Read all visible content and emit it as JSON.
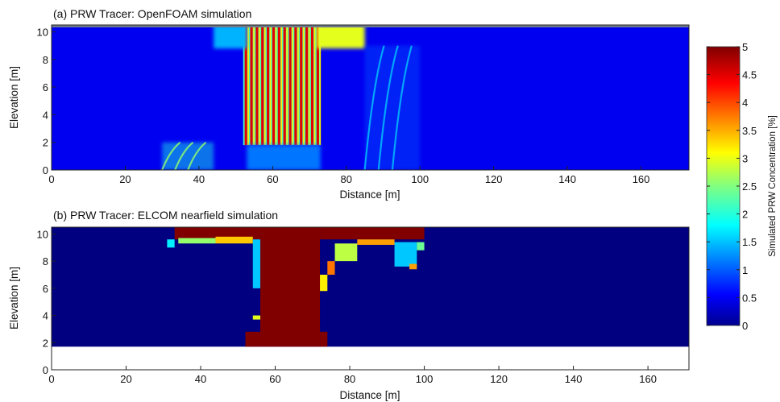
{
  "chart_data": [
    {
      "type": "heatmap",
      "title": "(a) PRW Tracer: OpenFOAM simulation",
      "xlabel": "Distance [m]",
      "ylabel": "Elevation [m]",
      "xlim": [
        0,
        173
      ],
      "ylim": [
        0,
        10.5
      ],
      "xticks": [
        0,
        20,
        40,
        60,
        80,
        100,
        120,
        140,
        160
      ],
      "yticks": [
        0,
        2,
        4,
        6,
        8,
        10
      ],
      "background_value": 0.55,
      "surface_band_elevation": [
        10.4,
        10.5
      ],
      "regions": [
        {
          "x": [
            52,
            73
          ],
          "y": [
            1.8,
            10.5
          ],
          "value": 4.5,
          "pattern": "vertical-plume-streaks"
        },
        {
          "x": [
            72,
            85
          ],
          "y": [
            8.8,
            10.5
          ],
          "value": 3.0
        },
        {
          "x": [
            44,
            53
          ],
          "y": [
            8.8,
            10.5
          ],
          "value": 1.5
        },
        {
          "x": [
            53,
            73
          ],
          "y": [
            0,
            1.8
          ],
          "value": 1.2
        },
        {
          "x": [
            30,
            44
          ],
          "y": [
            0,
            2.0
          ],
          "value": 2.0,
          "pattern": "curved-streaks"
        },
        {
          "x": [
            85,
            100
          ],
          "y": [
            0,
            9.0
          ],
          "value": 1.0,
          "pattern": "curved-streaks"
        }
      ]
    },
    {
      "type": "heatmap",
      "title": "(b) PRW Tracer: ELCOM nearfield simulation",
      "xlabel": "Distance [m]",
      "ylabel": "Elevation [m]",
      "xlim": [
        0,
        171
      ],
      "ylim": [
        0,
        10.5
      ],
      "domain_bottom": 1.7,
      "xticks": [
        0,
        20,
        40,
        60,
        80,
        100,
        120,
        140,
        160
      ],
      "yticks": [
        0,
        2,
        4,
        6,
        8,
        10
      ],
      "background_value": 0.0,
      "regions": [
        {
          "x": [
            56,
            72
          ],
          "y": [
            1.7,
            10.5
          ],
          "value": 5.0
        },
        {
          "x": [
            52,
            56
          ],
          "y": [
            1.7,
            2.8
          ],
          "value": 5.0
        },
        {
          "x": [
            72,
            74
          ],
          "y": [
            1.7,
            2.8
          ],
          "value": 5.0
        },
        {
          "x": [
            33,
            56
          ],
          "y": [
            9.6,
            10.5
          ],
          "value": 5.0
        },
        {
          "x": [
            72,
            100
          ],
          "y": [
            9.6,
            10.5
          ],
          "value": 5.0
        }
      ]
    }
  ],
  "colorbar": {
    "label": "Simulated PRW Concentration [%]",
    "range": [
      0,
      5
    ],
    "ticks": [
      "0",
      "0.5",
      "1",
      "1.5",
      "2",
      "2.5",
      "3",
      "3.5",
      "4",
      "4.5",
      "5"
    ],
    "colormap": "jet"
  }
}
